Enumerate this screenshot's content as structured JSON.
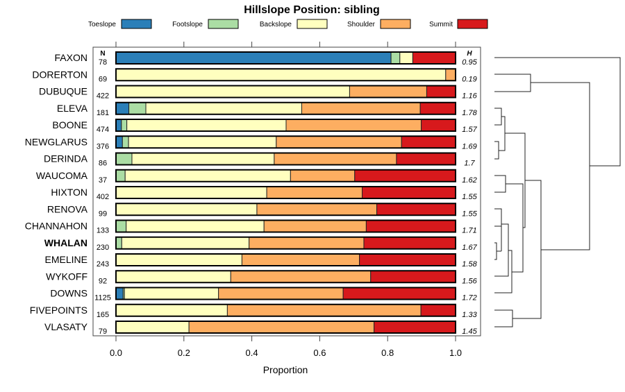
{
  "chart_data": {
    "type": "bar",
    "orientation": "horizontal-stacked",
    "title": "Hillslope Position: sibling",
    "xlabel": "Proportion",
    "xlim": [
      0,
      1
    ],
    "xticks": [
      "0.0",
      "0.2",
      "0.4",
      "0.6",
      "0.8",
      "1.0"
    ],
    "n_header": "N",
    "h_header": "H",
    "legend": [
      {
        "name": "Toeslope",
        "color": "#2b7fb8"
      },
      {
        "name": "Footslope",
        "color": "#abdda4"
      },
      {
        "name": "Backslope",
        "color": "#ffffbf"
      },
      {
        "name": "Shoulder",
        "color": "#fdae61"
      },
      {
        "name": "Summit",
        "color": "#d7191c"
      }
    ],
    "categories": [
      {
        "name": "FAXON",
        "n": "78",
        "h": "0.95",
        "values": [
          0.81,
          0.026,
          0.038,
          0.0,
          0.126
        ]
      },
      {
        "name": "DORERTON",
        "n": "69",
        "h": "0.19",
        "values": [
          0,
          0,
          0.971,
          0.029,
          0
        ]
      },
      {
        "name": "DUBUQUE",
        "n": "422",
        "h": "1.16",
        "values": [
          0,
          0,
          0.688,
          0.227,
          0.085
        ]
      },
      {
        "name": "ELEVA",
        "n": "181",
        "h": "1.78",
        "values": [
          0.038,
          0.05,
          0.459,
          0.349,
          0.104
        ]
      },
      {
        "name": "BOONE",
        "n": "474",
        "h": "1.57",
        "values": [
          0.016,
          0.016,
          0.469,
          0.398,
          0.101
        ]
      },
      {
        "name": "NEWGLARUS",
        "n": "376",
        "h": "1.69",
        "values": [
          0.019,
          0.018,
          0.435,
          0.369,
          0.159
        ]
      },
      {
        "name": "DERINDA",
        "n": "86",
        "h": "1.7",
        "values": [
          0,
          0.047,
          0.419,
          0.36,
          0.174
        ]
      },
      {
        "name": "WAUCOMA",
        "n": "37",
        "h": "1.62",
        "values": [
          0,
          0.027,
          0.487,
          0.189,
          0.297
        ]
      },
      {
        "name": "HIXTON",
        "n": "402",
        "h": "1.55",
        "values": [
          0,
          0,
          0.444,
          0.281,
          0.275
        ]
      },
      {
        "name": "RENOVA",
        "n": "99",
        "h": "1.55",
        "values": [
          0,
          0,
          0.415,
          0.353,
          0.232
        ]
      },
      {
        "name": "CHANNAHON",
        "n": "133",
        "h": "1.71",
        "values": [
          0,
          0.03,
          0.406,
          0.301,
          0.263
        ]
      },
      {
        "name": "WHALAN",
        "n": "230",
        "h": "1.67",
        "values": [
          0,
          0.017,
          0.375,
          0.338,
          0.27
        ],
        "bold": true
      },
      {
        "name": "EMELINE",
        "n": "243",
        "h": "1.58",
        "values": [
          0,
          0,
          0.371,
          0.346,
          0.283
        ]
      },
      {
        "name": "WYKOFF",
        "n": "92",
        "h": "1.56",
        "values": [
          0,
          0,
          0.338,
          0.412,
          0.25
        ]
      },
      {
        "name": "DOWNS",
        "n": "1125",
        "h": "1.72",
        "values": [
          0.021,
          0.004,
          0.277,
          0.367,
          0.331
        ]
      },
      {
        "name": "FIVEPOINTS",
        "n": "165",
        "h": "1.33",
        "values": [
          0,
          0,
          0.328,
          0.57,
          0.102
        ]
      },
      {
        "name": "VLASATY",
        "n": "79",
        "h": "1.45",
        "values": [
          0,
          0,
          0.215,
          0.545,
          0.24
        ]
      }
    ]
  }
}
